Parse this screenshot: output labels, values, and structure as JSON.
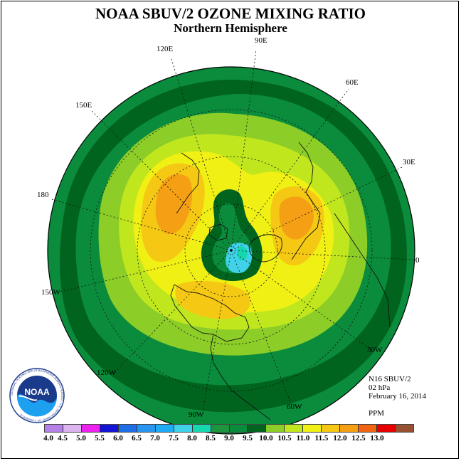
{
  "title": "NOAA SBUV/2 OZONE MIXING RATIO",
  "subtitle": "Northern Hemisphere",
  "longitude_labels": {
    "e90": "90E",
    "e60": "60E",
    "e30": "30E",
    "zero": "0",
    "w30": "30W",
    "w60": "60W",
    "w90": "90W",
    "w120": "120W",
    "w150": "150W",
    "d180": "180",
    "e150": "150E",
    "e120": "120E"
  },
  "info": {
    "instrument": "N16 SBUV/2",
    "level": "02 hPa",
    "date": "February 16, 2014",
    "units": "PPM"
  },
  "scale": {
    "ticks": [
      "4.0",
      "4.5",
      "5.0",
      "5.5",
      "6.0",
      "6.5",
      "7.0",
      "7.5",
      "8.0",
      "8.5",
      "9.0",
      "9.5",
      "10.0",
      "10.5",
      "11.0",
      "11.5",
      "12.0",
      "12.5",
      "13.0"
    ],
    "colors": [
      "#b482e6",
      "#dcb4f0",
      "#ee22ee",
      "#1414d6",
      "#1e6ee6",
      "#2896f0",
      "#1eaaf5",
      "#40d2e8",
      "#16d8b0",
      "#1e9640",
      "#0a8c3c",
      "#00641e",
      "#8ccd28",
      "#c0e61e",
      "#f0f014",
      "#f5c814",
      "#f5a014",
      "#f06414",
      "#e60000",
      "#965032"
    ]
  },
  "logo": {
    "text": "NOAA",
    "ring_text": "NATIONAL OCEANIC AND ATMOSPHERIC ADMINISTRATION · U.S. DEPARTMENT OF COMMERCE"
  },
  "map": {
    "projection": "north polar stereographic",
    "grid": true,
    "dominant_field": "ozone mixing ratio contours, ppm",
    "regions": [
      {
        "level": "8.0-8.5",
        "color": "#16d8b0",
        "location": "polar vortex core / small patch near 60E edge"
      },
      {
        "level": "9.5-10.0",
        "color": "#c0e61e",
        "location": "mid-latitude ring"
      },
      {
        "level": "10.5-11.0",
        "color": "#f5c814",
        "location": "highs over Siberia and Europe"
      },
      {
        "level": "11.0-11.5",
        "color": "#f5a014",
        "location": "maximum over eastern Siberia / Pacific"
      }
    ]
  }
}
